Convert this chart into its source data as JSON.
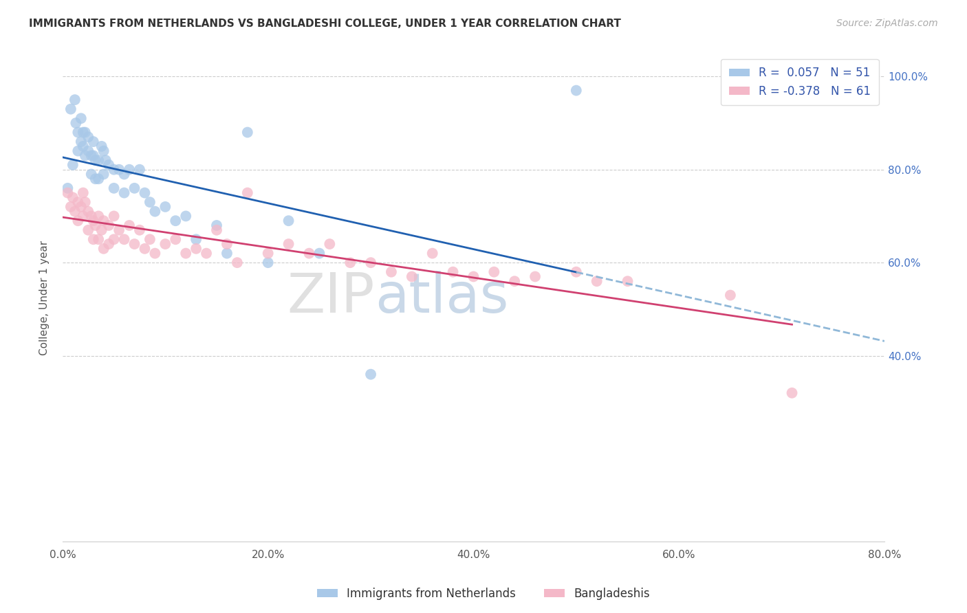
{
  "title": "IMMIGRANTS FROM NETHERLANDS VS BANGLADESHI COLLEGE, UNDER 1 YEAR CORRELATION CHART",
  "source": "Source: ZipAtlas.com",
  "ylabel": "College, Under 1 year",
  "xlim": [
    0.0,
    0.8
  ],
  "ylim": [
    0.0,
    1.05
  ],
  "xtick_labels": [
    "0.0%",
    "20.0%",
    "40.0%",
    "60.0%",
    "80.0%"
  ],
  "xtick_vals": [
    0.0,
    0.2,
    0.4,
    0.6,
    0.8
  ],
  "ytick_labels_right": [
    "40.0%",
    "60.0%",
    "80.0%",
    "100.0%"
  ],
  "ytick_vals_right": [
    0.4,
    0.6,
    0.8,
    1.0
  ],
  "legend_blue_label": "R =  0.057   N = 51",
  "legend_pink_label": "R = -0.378   N = 61",
  "legend_bottom_blue": "Immigrants from Netherlands",
  "legend_bottom_pink": "Bangladeshis",
  "blue_color": "#a8c8e8",
  "pink_color": "#f4b8c8",
  "blue_line_color": "#2060b0",
  "pink_line_color": "#d04070",
  "blue_dashed_color": "#90b8d8",
  "blue_x": [
    0.005,
    0.008,
    0.01,
    0.012,
    0.013,
    0.015,
    0.015,
    0.018,
    0.018,
    0.02,
    0.02,
    0.022,
    0.022,
    0.025,
    0.025,
    0.028,
    0.028,
    0.03,
    0.03,
    0.032,
    0.032,
    0.035,
    0.035,
    0.038,
    0.04,
    0.04,
    0.042,
    0.045,
    0.05,
    0.05,
    0.055,
    0.06,
    0.06,
    0.065,
    0.07,
    0.075,
    0.08,
    0.085,
    0.09,
    0.1,
    0.11,
    0.12,
    0.13,
    0.15,
    0.16,
    0.18,
    0.2,
    0.22,
    0.25,
    0.3,
    0.5
  ],
  "blue_y": [
    0.76,
    0.93,
    0.81,
    0.95,
    0.9,
    0.88,
    0.84,
    0.91,
    0.86,
    0.88,
    0.85,
    0.88,
    0.83,
    0.87,
    0.84,
    0.83,
    0.79,
    0.86,
    0.83,
    0.82,
    0.78,
    0.82,
    0.78,
    0.85,
    0.84,
    0.79,
    0.82,
    0.81,
    0.8,
    0.76,
    0.8,
    0.79,
    0.75,
    0.8,
    0.76,
    0.8,
    0.75,
    0.73,
    0.71,
    0.72,
    0.69,
    0.7,
    0.65,
    0.68,
    0.62,
    0.88,
    0.6,
    0.69,
    0.62,
    0.36,
    0.97
  ],
  "pink_x": [
    0.005,
    0.008,
    0.01,
    0.012,
    0.015,
    0.015,
    0.018,
    0.02,
    0.02,
    0.022,
    0.025,
    0.025,
    0.028,
    0.03,
    0.03,
    0.032,
    0.035,
    0.035,
    0.038,
    0.04,
    0.04,
    0.045,
    0.045,
    0.05,
    0.05,
    0.055,
    0.06,
    0.065,
    0.07,
    0.075,
    0.08,
    0.085,
    0.09,
    0.1,
    0.11,
    0.12,
    0.13,
    0.14,
    0.15,
    0.16,
    0.17,
    0.18,
    0.2,
    0.22,
    0.24,
    0.26,
    0.28,
    0.3,
    0.32,
    0.34,
    0.36,
    0.38,
    0.4,
    0.42,
    0.44,
    0.46,
    0.5,
    0.52,
    0.55,
    0.65,
    0.71
  ],
  "pink_y": [
    0.75,
    0.72,
    0.74,
    0.71,
    0.73,
    0.69,
    0.72,
    0.75,
    0.7,
    0.73,
    0.71,
    0.67,
    0.7,
    0.69,
    0.65,
    0.68,
    0.7,
    0.65,
    0.67,
    0.69,
    0.63,
    0.68,
    0.64,
    0.7,
    0.65,
    0.67,
    0.65,
    0.68,
    0.64,
    0.67,
    0.63,
    0.65,
    0.62,
    0.64,
    0.65,
    0.62,
    0.63,
    0.62,
    0.67,
    0.64,
    0.6,
    0.75,
    0.62,
    0.64,
    0.62,
    0.64,
    0.6,
    0.6,
    0.58,
    0.57,
    0.62,
    0.58,
    0.57,
    0.58,
    0.56,
    0.57,
    0.58,
    0.56,
    0.56,
    0.53,
    0.32
  ]
}
